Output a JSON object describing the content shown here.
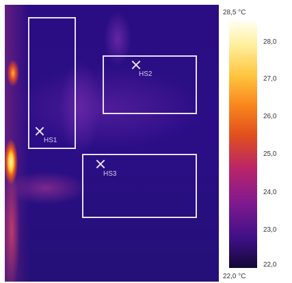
{
  "regions": [
    {
      "label": "HS1"
    },
    {
      "label": "HS2"
    },
    {
      "label": "HS3"
    }
  ],
  "scale": {
    "max_label": "28,5 °C",
    "min_label": "22,0 °C",
    "ticks": [
      "28,0",
      "27,0",
      "26,0",
      "25,0",
      "24,0",
      "23,0",
      "22,0"
    ],
    "gradient_colors": [
      "#fffff0",
      "#ffc53f",
      "#e2501d",
      "#7e1a8f",
      "#140836"
    ]
  },
  "colors": {
    "box_outline": "#e8e0f4",
    "background_cold": "#2a0d82"
  }
}
